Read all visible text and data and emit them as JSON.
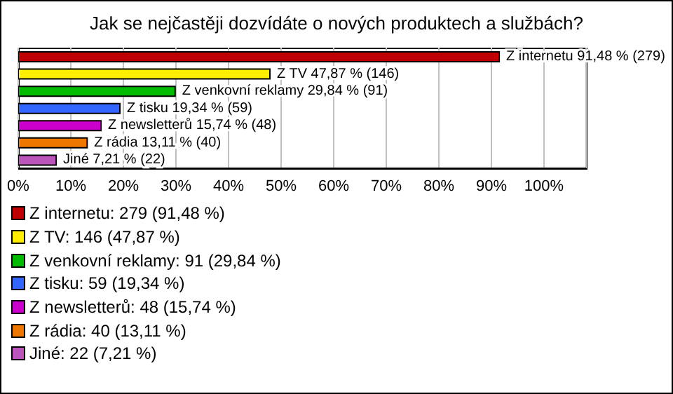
{
  "chart_data": {
    "type": "bar",
    "orientation": "horizontal",
    "title": "Jak se nejčastěji dozvídáte o nových produktech a službách?",
    "categories": [
      null,
      null,
      null,
      null,
      null,
      null,
      null
    ],
    "values": [
      91.48,
      47.87,
      29.84,
      19.34,
      15.74,
      13.11,
      7.21
    ],
    "colors": [
      "#c00000",
      "#ffee00",
      "#00bb00",
      "#3366ff",
      "#cc00cc",
      "#ee7700",
      "#bb55bb"
    ],
    "value_labels": [
      "Z internetu 91,48 % (279)",
      "Z TV 47,87 % (146)",
      "Z venkovní reklamy 29,84 % (91)",
      "Z tisku 19,34 % (59)",
      "Z newsletterů 15,74 % (48)",
      "Z rádia 13,11 % (40)",
      "Jiné 7,21 % (22)"
    ],
    "xlim": [
      0,
      108
    ],
    "xticks": [
      {
        "value": 0,
        "label": "0%"
      },
      {
        "value": 10,
        "label": "10%"
      },
      {
        "value": 20,
        "label": "20%"
      },
      {
        "value": 30,
        "label": "30%"
      },
      {
        "value": 40,
        "label": "40%"
      },
      {
        "value": 50,
        "label": "50%"
      },
      {
        "value": 60,
        "label": "60%"
      },
      {
        "value": 70,
        "label": "70%"
      },
      {
        "value": 80,
        "label": "80%"
      },
      {
        "value": 90,
        "label": "90%"
      },
      {
        "value": 100,
        "label": "100%"
      }
    ],
    "grid": "x",
    "annotations": [
      "Z internetu: 279 (91,48 %)",
      "Z TV: 146 (47,87 %)",
      "Z venkovní reklamy: 91 (29,84 %)",
      "Z tisku: 59 (19,34 %)",
      "Z newsletterů: 48 (15,74 %)",
      "Z rádia: 40 (13,11 %)",
      "Jiné: 22 (7,21 %)"
    ]
  }
}
